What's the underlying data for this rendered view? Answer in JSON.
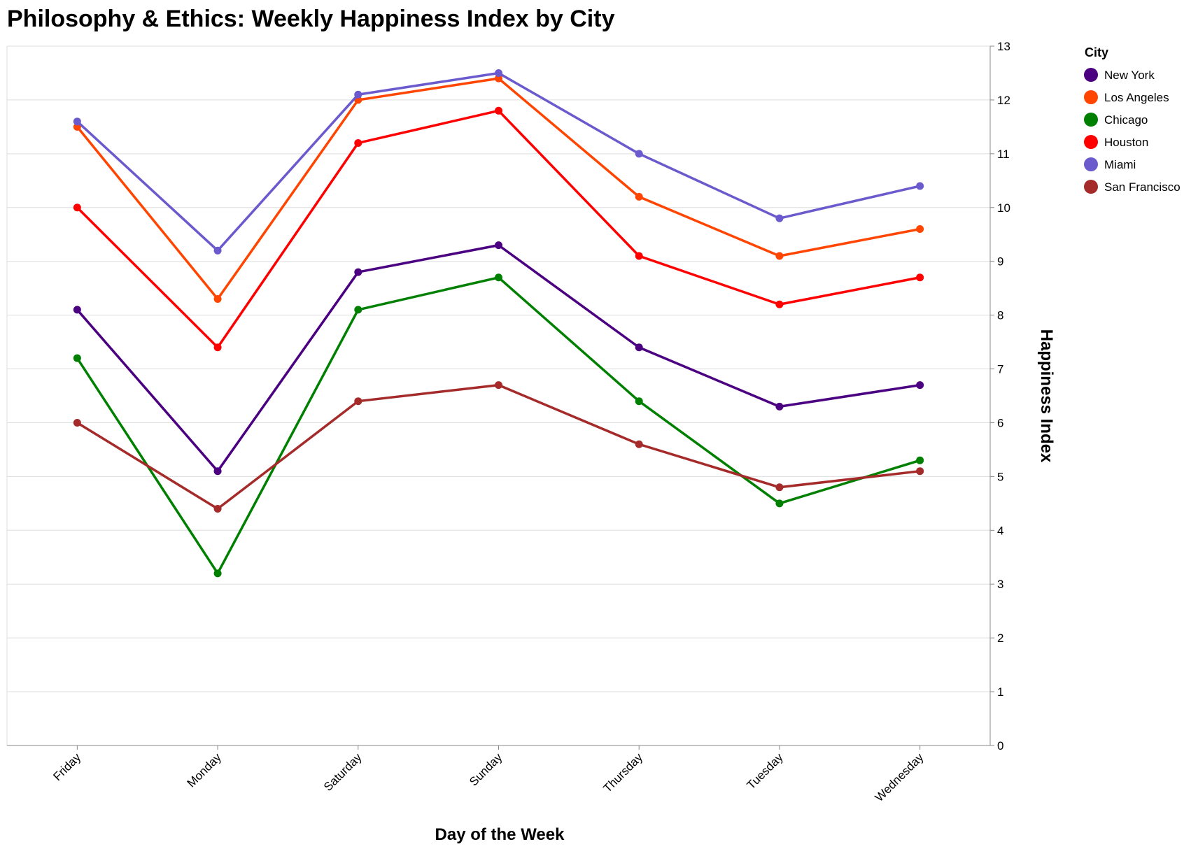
{
  "chart_data": {
    "type": "line",
    "title": "Philosophy & Ethics: Weekly Happiness Index by City",
    "xlabel": "Day of the Week",
    "ylabel": "Happiness Index",
    "categories": [
      "Friday",
      "Monday",
      "Saturday",
      "Sunday",
      "Thursday",
      "Tuesday",
      "Wednesday"
    ],
    "ylim": [
      0,
      13
    ],
    "yticks": [
      0,
      1,
      2,
      3,
      4,
      5,
      6,
      7,
      8,
      9,
      10,
      11,
      12,
      13
    ],
    "y_axis_position": "right",
    "grid": true,
    "legend": {
      "title": "City",
      "placement": "top-right"
    },
    "series": [
      {
        "name": "New York",
        "color": "#4b0082",
        "values": [
          8.1,
          5.1,
          8.8,
          9.3,
          7.4,
          6.3,
          6.7
        ]
      },
      {
        "name": "Los Angeles",
        "color": "#ff4500",
        "values": [
          11.5,
          8.3,
          12.0,
          12.4,
          10.2,
          9.1,
          9.6
        ]
      },
      {
        "name": "Chicago",
        "color": "#008000",
        "values": [
          7.2,
          3.2,
          8.1,
          8.7,
          6.4,
          4.5,
          5.3
        ]
      },
      {
        "name": "Houston",
        "color": "#ff0000",
        "values": [
          10.0,
          7.4,
          11.2,
          11.8,
          9.1,
          8.2,
          8.7
        ]
      },
      {
        "name": "Miami",
        "color": "#6a5acd",
        "values": [
          11.6,
          9.2,
          12.1,
          12.5,
          11.0,
          9.8,
          10.4
        ]
      },
      {
        "name": "San Francisco",
        "color": "#a52a2a",
        "values": [
          6.0,
          4.4,
          6.4,
          6.7,
          5.6,
          4.8,
          5.1
        ]
      }
    ]
  }
}
